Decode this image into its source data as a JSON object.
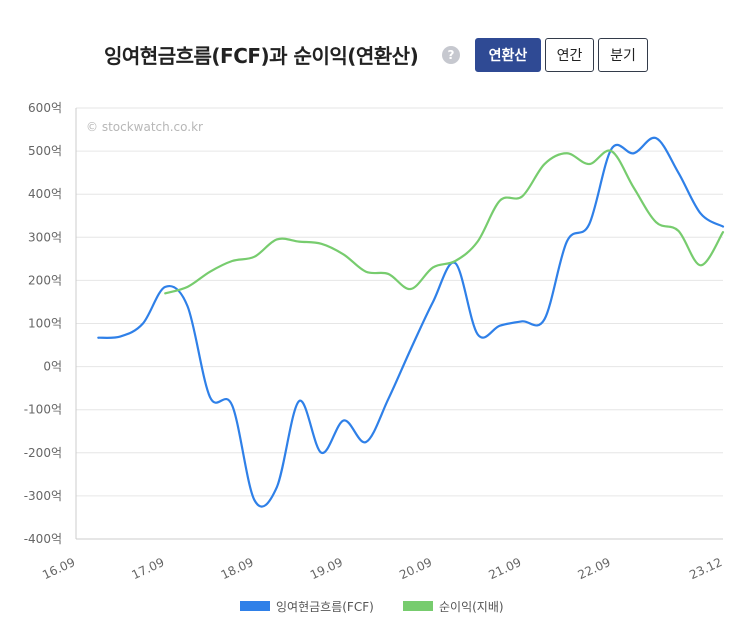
{
  "header": {
    "title": "잉여현금흐름(FCF)과 순이익(연환산)",
    "help_glyph": "?",
    "tabs": [
      {
        "label": "연환산",
        "active": true
      },
      {
        "label": "연간",
        "active": false
      },
      {
        "label": "분기",
        "active": false
      }
    ]
  },
  "watermark": "© stockwatch.co.kr",
  "legend": [
    {
      "label": "잉여현금흐름(FCF)",
      "color": "#2f80e8"
    },
    {
      "label": "순이익(지배)",
      "color": "#77cc6e"
    }
  ],
  "chart_data": {
    "type": "line",
    "x": [
      "16.09",
      "16.12",
      "17.03",
      "17.06",
      "17.09",
      "17.12",
      "18.03",
      "18.06",
      "18.09",
      "18.12",
      "19.03",
      "19.06",
      "19.09",
      "19.12",
      "20.03",
      "20.06",
      "20.09",
      "20.12",
      "21.03",
      "21.06",
      "21.09",
      "21.12",
      "22.03",
      "22.06",
      "22.09",
      "22.12",
      "23.03",
      "23.06",
      "23.09",
      "23.12"
    ],
    "x_tick_labels": [
      "16.09",
      "17.09",
      "18.09",
      "19.09",
      "20.09",
      "21.09",
      "22.09",
      "23.12"
    ],
    "y_ticks": [
      600,
      500,
      400,
      300,
      200,
      100,
      0,
      -100,
      -200,
      -300,
      -400
    ],
    "y_tick_suffix": "억",
    "ylim": [
      -400,
      600
    ],
    "grid": true,
    "legend_position": "bottom",
    "series": [
      {
        "name": "잉여현금흐름(FCF)",
        "color": "#2f80e8",
        "values": [
          null,
          67,
          70,
          100,
          185,
          140,
          -70,
          -90,
          -310,
          -280,
          -80,
          -200,
          -125,
          -175,
          -75,
          40,
          150,
          240,
          75,
          95,
          105,
          110,
          290,
          330,
          505,
          495,
          530,
          450,
          355,
          325
        ]
      },
      {
        "name": "순이익(지배)",
        "color": "#77cc6e",
        "values": [
          null,
          null,
          null,
          null,
          170,
          185,
          220,
          245,
          255,
          295,
          290,
          285,
          260,
          220,
          215,
          180,
          230,
          245,
          290,
          385,
          395,
          470,
          495,
          470,
          500,
          415,
          335,
          315,
          235,
          312
        ]
      }
    ]
  }
}
